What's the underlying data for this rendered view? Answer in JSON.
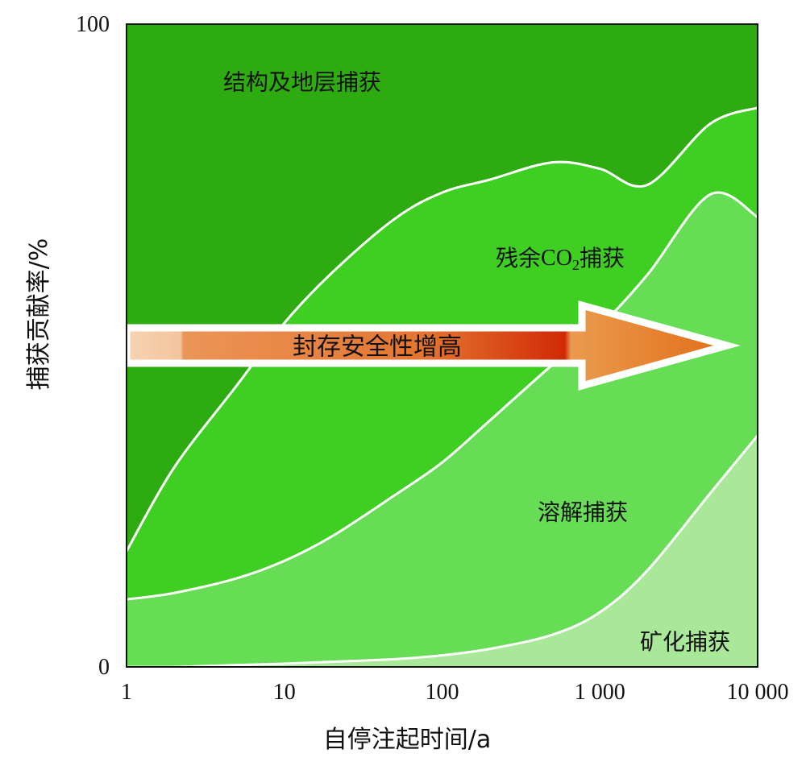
{
  "chart_data": {
    "type": "area",
    "stacked": true,
    "x_scale": "log",
    "xlim": [
      1,
      10000
    ],
    "ylim": [
      0,
      100
    ],
    "x_ticks": [
      1,
      10,
      100,
      1000,
      10000
    ],
    "x_tick_labels": [
      "1",
      "10",
      "100",
      "1 000",
      "10 000"
    ],
    "y_ticks": [
      0,
      100
    ],
    "y_tick_labels": [
      "0",
      "100"
    ],
    "xlabel": "自停注起时间/a",
    "ylabel": "捕获贡献率/%",
    "grid": false,
    "x": [
      1,
      2,
      5,
      10,
      20,
      50,
      100,
      200,
      500,
      1000,
      2000,
      5000,
      10000
    ],
    "series": [
      {
        "name": "矿化捕获",
        "label_prefix": "矿化捕获",
        "label_suffix": "",
        "color": "#a8e898",
        "values": [
          0,
          0,
          0.3,
          0.5,
          0.8,
          1.2,
          1.8,
          2.8,
          5.0,
          8.5,
          15,
          27,
          36
        ]
      },
      {
        "name": "溶解捕获",
        "label_prefix": "溶解捕获",
        "label_suffix": "",
        "color": "#66dd55",
        "values": [
          10.5,
          11.5,
          13.5,
          16,
          19.5,
          25.5,
          30,
          35.5,
          42,
          44.5,
          46,
          46.5,
          34
        ]
      },
      {
        "name": "残余CO2捕获",
        "label_prefix": "残余CO",
        "label_subscript": "2",
        "label_suffix": "捕获",
        "color": "#3ecf22",
        "values": [
          7.5,
          19.5,
          30,
          37,
          41,
          43,
          42,
          37.5,
          31.5,
          24.5,
          14,
          11,
          17
        ]
      },
      {
        "name": "结构及地层捕获",
        "label_prefix": "结构及地层捕获",
        "label_suffix": "",
        "color": "#2eab10",
        "values": [
          82,
          69,
          56.2,
          46.5,
          38.7,
          30.3,
          26.2,
          24.2,
          21.5,
          22.5,
          25,
          15.5,
          13
        ]
      }
    ],
    "annotations": [
      {
        "text": "封存安全性增高",
        "type": "arrow",
        "direction": "right",
        "x_start": 1,
        "x_end": 7000,
        "y": 50
      }
    ]
  }
}
